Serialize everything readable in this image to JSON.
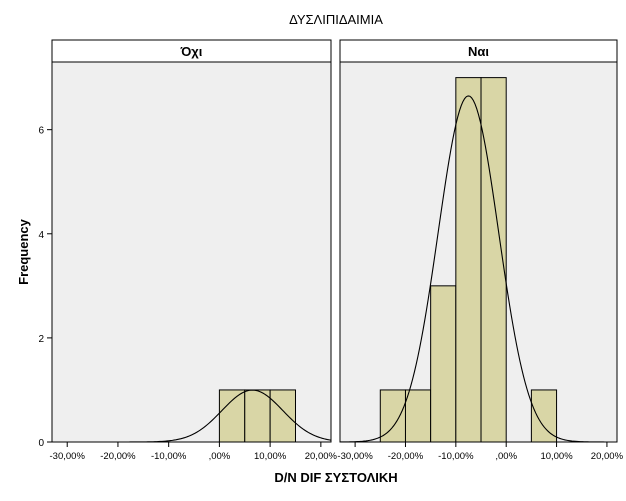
{
  "chart_data": {
    "type": "bar",
    "title": "ΔΥΣΛΙΠΙΔΑΙΜΙΑ",
    "xlabel": "D/N DIF ΣΥΣΤΟΛΙΚΗ",
    "ylabel": "Frequency",
    "xlim": [
      -33,
      22
    ],
    "ylim": [
      0,
      7.3
    ],
    "x_ticks": [
      -30,
      -20,
      -10,
      0,
      10,
      20
    ],
    "x_tick_labels": [
      "-30,00%",
      "-20,00%",
      "-10,00%",
      ",00%",
      "10,00%",
      "20,00%"
    ],
    "y_ticks": [
      0,
      2,
      4,
      6
    ],
    "y_tick_labels": [
      "0",
      "2",
      "4",
      "6"
    ],
    "panel_background": "#efefef",
    "bar_color": "#d9d6a6",
    "bar_edge_color": "#000000",
    "panels": [
      {
        "label": "Όχι",
        "bins": [
          {
            "from": 0,
            "to": 5,
            "count": 1
          },
          {
            "from": 5,
            "to": 10,
            "count": 1
          },
          {
            "from": 10,
            "to": 15,
            "count": 1
          }
        ],
        "normal_curve": {
          "mean": 6.5,
          "sd": 6.0,
          "n": 3,
          "bin_width": 5
        }
      },
      {
        "label": "Ναι",
        "bins": [
          {
            "from": -25,
            "to": -20,
            "count": 1
          },
          {
            "from": -20,
            "to": -15,
            "count": 1
          },
          {
            "from": -15,
            "to": -10,
            "count": 3
          },
          {
            "from": -10,
            "to": -5,
            "count": 7
          },
          {
            "from": -5,
            "to": 0,
            "count": 7
          },
          {
            "from": 5,
            "to": 10,
            "count": 1
          }
        ],
        "normal_curve": {
          "mean": -7.5,
          "sd": 6.0,
          "n": 20,
          "bin_width": 5
        }
      }
    ]
  }
}
